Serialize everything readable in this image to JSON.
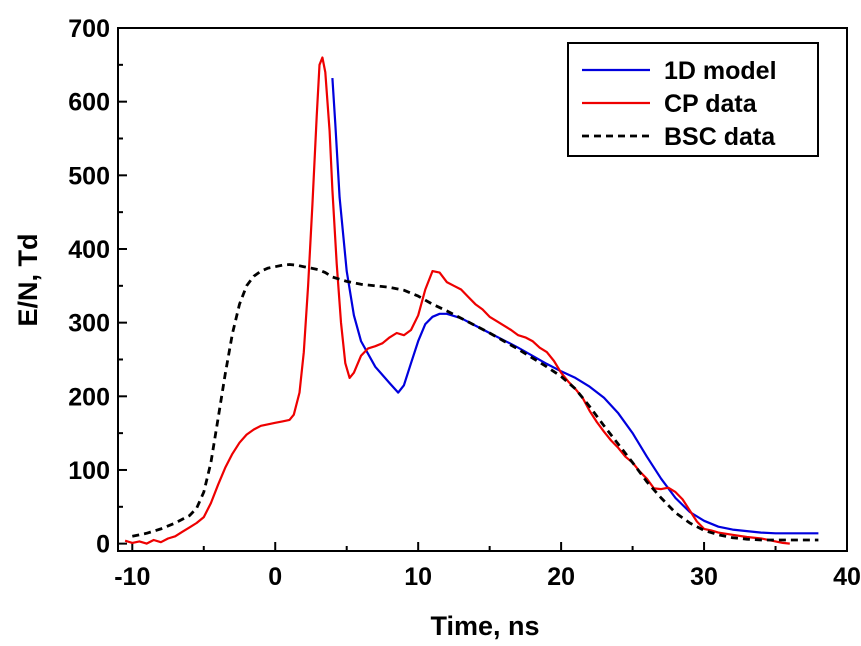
{
  "chart_data": {
    "type": "line",
    "xlabel": "Time, ns",
    "ylabel": "E/N, Td",
    "xlim": [
      -11,
      40
    ],
    "ylim": [
      -10,
      700
    ],
    "xticks": [
      -10,
      0,
      10,
      20,
      30,
      40
    ],
    "yticks": [
      0,
      100,
      200,
      300,
      400,
      500,
      600,
      700
    ],
    "legend_position": "top-right",
    "series": [
      {
        "name": "1D model",
        "color": "#0000dd",
        "dash": "solid",
        "points": [
          [
            4.0,
            632
          ],
          [
            4.2,
            570
          ],
          [
            4.5,
            470
          ],
          [
            5.0,
            370
          ],
          [
            5.5,
            310
          ],
          [
            6.0,
            275
          ],
          [
            7.0,
            240
          ],
          [
            8.0,
            218
          ],
          [
            8.6,
            205
          ],
          [
            9.0,
            215
          ],
          [
            9.5,
            245
          ],
          [
            10.0,
            275
          ],
          [
            10.5,
            298
          ],
          [
            11.0,
            308
          ],
          [
            11.5,
            312
          ],
          [
            12.0,
            312
          ],
          [
            13.0,
            306
          ],
          [
            14.0,
            296
          ],
          [
            15.0,
            286
          ],
          [
            16.0,
            276
          ],
          [
            17.0,
            266
          ],
          [
            18.0,
            255
          ],
          [
            19.0,
            244
          ],
          [
            20.0,
            234
          ],
          [
            21.0,
            225
          ],
          [
            22.0,
            213
          ],
          [
            23.0,
            198
          ],
          [
            24.0,
            177
          ],
          [
            25.0,
            150
          ],
          [
            26.0,
            118
          ],
          [
            27.0,
            88
          ],
          [
            28.0,
            62
          ],
          [
            29.0,
            43
          ],
          [
            30.0,
            31
          ],
          [
            31.0,
            23
          ],
          [
            32.0,
            19
          ],
          [
            33.0,
            17
          ],
          [
            34.0,
            15
          ],
          [
            35.0,
            14
          ],
          [
            36.0,
            14
          ],
          [
            37.0,
            14
          ],
          [
            38.0,
            14
          ]
        ]
      },
      {
        "name": "CP data",
        "color": "#ee0000",
        "dash": "solid",
        "points": [
          [
            -10.5,
            4
          ],
          [
            -10.0,
            1
          ],
          [
            -9.5,
            3
          ],
          [
            -9.0,
            0
          ],
          [
            -8.5,
            5
          ],
          [
            -8.0,
            2
          ],
          [
            -7.5,
            7
          ],
          [
            -7.0,
            10
          ],
          [
            -6.5,
            16
          ],
          [
            -6.0,
            22
          ],
          [
            -5.5,
            28
          ],
          [
            -5.0,
            36
          ],
          [
            -4.5,
            55
          ],
          [
            -4.0,
            80
          ],
          [
            -3.5,
            103
          ],
          [
            -3.0,
            122
          ],
          [
            -2.5,
            137
          ],
          [
            -2.0,
            148
          ],
          [
            -1.5,
            155
          ],
          [
            -1.0,
            160
          ],
          [
            -0.5,
            162
          ],
          [
            0.0,
            164
          ],
          [
            0.5,
            166
          ],
          [
            1.0,
            168
          ],
          [
            1.3,
            175
          ],
          [
            1.7,
            205
          ],
          [
            2.0,
            260
          ],
          [
            2.3,
            350
          ],
          [
            2.6,
            460
          ],
          [
            2.9,
            580
          ],
          [
            3.1,
            650
          ],
          [
            3.3,
            660
          ],
          [
            3.5,
            640
          ],
          [
            3.8,
            560
          ],
          [
            4.0,
            480
          ],
          [
            4.3,
            380
          ],
          [
            4.6,
            300
          ],
          [
            4.9,
            245
          ],
          [
            5.2,
            225
          ],
          [
            5.5,
            232
          ],
          [
            6.0,
            255
          ],
          [
            6.5,
            265
          ],
          [
            7.0,
            268
          ],
          [
            7.5,
            272
          ],
          [
            8.0,
            280
          ],
          [
            8.5,
            286
          ],
          [
            9.0,
            283
          ],
          [
            9.5,
            290
          ],
          [
            10.0,
            310
          ],
          [
            10.5,
            345
          ],
          [
            11.0,
            370
          ],
          [
            11.5,
            368
          ],
          [
            12.0,
            355
          ],
          [
            12.5,
            350
          ],
          [
            13.0,
            345
          ],
          [
            13.5,
            335
          ],
          [
            14.0,
            325
          ],
          [
            14.5,
            318
          ],
          [
            15.0,
            308
          ],
          [
            15.5,
            302
          ],
          [
            16.0,
            296
          ],
          [
            16.5,
            290
          ],
          [
            17.0,
            283
          ],
          [
            17.5,
            280
          ],
          [
            18.0,
            275
          ],
          [
            18.5,
            266
          ],
          [
            19.0,
            260
          ],
          [
            19.5,
            248
          ],
          [
            20.0,
            232
          ],
          [
            20.5,
            220
          ],
          [
            21.0,
            210
          ],
          [
            21.5,
            198
          ],
          [
            22.0,
            180
          ],
          [
            22.5,
            165
          ],
          [
            23.0,
            152
          ],
          [
            23.5,
            140
          ],
          [
            24.0,
            130
          ],
          [
            24.5,
            118
          ],
          [
            25.0,
            110
          ],
          [
            25.5,
            98
          ],
          [
            26.0,
            88
          ],
          [
            26.5,
            75
          ],
          [
            27.0,
            74
          ],
          [
            27.5,
            76
          ],
          [
            28.0,
            70
          ],
          [
            28.5,
            60
          ],
          [
            29.0,
            45
          ],
          [
            29.5,
            30
          ],
          [
            30.0,
            20
          ],
          [
            30.5,
            18
          ],
          [
            31.0,
            15
          ],
          [
            32.0,
            12
          ],
          [
            33.0,
            9
          ],
          [
            34.0,
            7
          ],
          [
            35.0,
            3
          ],
          [
            35.5,
            1
          ],
          [
            36.0,
            0
          ]
        ]
      },
      {
        "name": "BSC data",
        "color": "#000000",
        "dash": "dashed",
        "points": [
          [
            -10.0,
            10
          ],
          [
            -9.0,
            14
          ],
          [
            -8.0,
            20
          ],
          [
            -7.0,
            28
          ],
          [
            -6.0,
            38
          ],
          [
            -5.5,
            48
          ],
          [
            -5.0,
            70
          ],
          [
            -4.5,
            110
          ],
          [
            -4.0,
            170
          ],
          [
            -3.5,
            230
          ],
          [
            -3.0,
            285
          ],
          [
            -2.5,
            325
          ],
          [
            -2.0,
            350
          ],
          [
            -1.5,
            363
          ],
          [
            -1.0,
            370
          ],
          [
            -0.5,
            374
          ],
          [
            0.0,
            376
          ],
          [
            0.5,
            378
          ],
          [
            1.0,
            379
          ],
          [
            1.5,
            378
          ],
          [
            2.0,
            376
          ],
          [
            2.5,
            374
          ],
          [
            3.0,
            372
          ],
          [
            3.5,
            368
          ],
          [
            4.0,
            362
          ],
          [
            5.0,
            356
          ],
          [
            6.0,
            352
          ],
          [
            7.0,
            350
          ],
          [
            8.0,
            348
          ],
          [
            9.0,
            344
          ],
          [
            10.0,
            336
          ],
          [
            11.0,
            325
          ],
          [
            12.0,
            316
          ],
          [
            13.0,
            306
          ],
          [
            14.0,
            296
          ],
          [
            15.0,
            286
          ],
          [
            16.0,
            275
          ],
          [
            17.0,
            264
          ],
          [
            18.0,
            252
          ],
          [
            19.0,
            240
          ],
          [
            20.0,
            227
          ],
          [
            21.0,
            210
          ],
          [
            22.0,
            186
          ],
          [
            23.0,
            160
          ],
          [
            24.0,
            135
          ],
          [
            25.0,
            110
          ],
          [
            26.0,
            84
          ],
          [
            27.0,
            62
          ],
          [
            28.0,
            42
          ],
          [
            29.0,
            28
          ],
          [
            30.0,
            18
          ],
          [
            31.0,
            12
          ],
          [
            32.0,
            8
          ],
          [
            33.0,
            6
          ],
          [
            34.0,
            5
          ],
          [
            35.0,
            5
          ],
          [
            36.0,
            5
          ],
          [
            37.0,
            5
          ],
          [
            38.0,
            5
          ]
        ]
      }
    ]
  }
}
